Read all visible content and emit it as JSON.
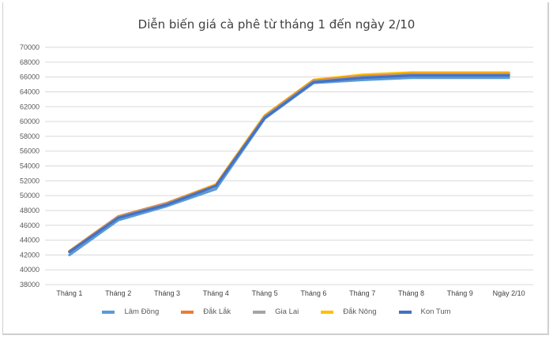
{
  "chart_data": {
    "type": "line",
    "title": "Diễn biến giá cà phê từ tháng 1 đến ngày 2/10",
    "xlabel": "",
    "ylabel": "",
    "ylim": [
      38000,
      70000
    ],
    "ytick_step": 2000,
    "yticks": [
      "70000",
      "68000",
      "66000",
      "64000",
      "62000",
      "60000",
      "58000",
      "56000",
      "54000",
      "52000",
      "50000",
      "48000",
      "46000",
      "44000",
      "42000",
      "40000",
      "38000"
    ],
    "grid": true,
    "legend_position": "bottom",
    "categories": [
      "Tháng 1",
      "Tháng 2",
      "Tháng 3",
      "Tháng 4",
      "Tháng 5",
      "Tháng 6",
      "Tháng 7",
      "Tháng 8",
      "Tháng 9",
      "Ngày 2/10"
    ],
    "series": [
      {
        "name": "Lâm Đồng",
        "color": "#5B9BD5",
        "values": [
          42000,
          46700,
          48600,
          50900,
          60400,
          65200,
          65600,
          65900,
          65900,
          65900
        ]
      },
      {
        "name": "Đắk Lắk",
        "color": "#ED7D31",
        "values": [
          42500,
          47200,
          49000,
          51400,
          60700,
          65500,
          66100,
          66400,
          66400,
          66400
        ]
      },
      {
        "name": "Gia Lai",
        "color": "#A5A5A5",
        "values": [
          42400,
          47100,
          48900,
          51300,
          60600,
          65400,
          66000,
          66300,
          66300,
          66300
        ]
      },
      {
        "name": "Đắk Nông",
        "color": "#FFC000",
        "values": [
          42500,
          47200,
          49000,
          51500,
          60800,
          65600,
          66300,
          66600,
          66600,
          66600
        ]
      },
      {
        "name": "Kon Tum",
        "color": "#4472C4",
        "values": [
          42400,
          47000,
          48800,
          51300,
          60500,
          65300,
          65900,
          66200,
          66200,
          66200
        ]
      }
    ]
  }
}
